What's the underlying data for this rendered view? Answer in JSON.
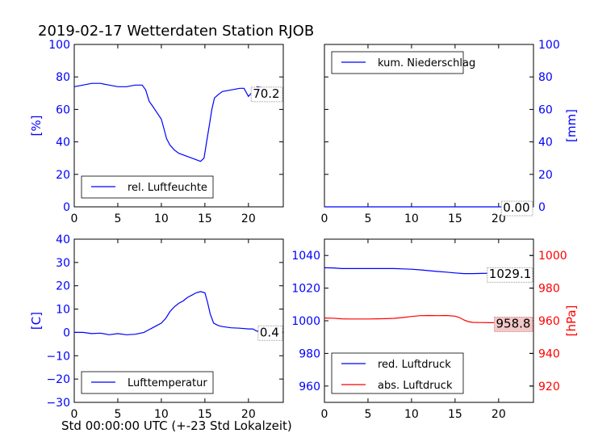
{
  "title": "2019-02-17 Wetterdaten Station RJOB",
  "footer_xlabel": "Std 00:00:00 UTC (+-23 Std Lokalzeit)",
  "colors": {
    "blue": "#0000ff",
    "red": "#ff0000",
    "black": "#000000"
  },
  "chart_data": [
    {
      "type": "line",
      "panel": "top-left",
      "ylabel": "[%]",
      "xlim": [
        0,
        24
      ],
      "ylim": [
        0,
        100
      ],
      "xticks": [
        "0",
        "5",
        "10",
        "15",
        "20"
      ],
      "yticks": [
        "0",
        "20",
        "40",
        "60",
        "80",
        "100"
      ],
      "legend": "lower-left",
      "last_value_label": "70.2",
      "series": [
        {
          "name": "rel. Luftfeuchte",
          "color": "#0000ff",
          "x": [
            0,
            1,
            2,
            3,
            4,
            5,
            6,
            7,
            7.8,
            8.2,
            8.6,
            9,
            9.5,
            10,
            10.3,
            10.6,
            11,
            11.5,
            12,
            12.5,
            13,
            13.5,
            14,
            14.5,
            14.9,
            15.2,
            15.5,
            15.8,
            16.1,
            16.5,
            17,
            18,
            19,
            19.5,
            20,
            20.5,
            21,
            22,
            23,
            24
          ],
          "y": [
            74,
            75,
            76,
            76,
            75,
            74,
            74,
            75,
            75,
            72,
            65,
            62,
            58,
            54,
            48,
            42,
            38,
            35,
            33,
            32,
            31,
            30,
            29,
            28,
            30,
            40,
            50,
            60,
            67,
            69,
            71,
            72,
            73,
            73,
            68,
            71,
            74,
            73,
            71,
            70.2
          ]
        }
      ]
    },
    {
      "type": "line",
      "panel": "top-right",
      "ylabel": "[mm]",
      "xlim": [
        0,
        24
      ],
      "ylim": [
        0,
        100
      ],
      "xticks": [
        "0",
        "5",
        "10",
        "15",
        "20"
      ],
      "yticks": [
        "0",
        "20",
        "40",
        "60",
        "80",
        "100"
      ],
      "legend": "upper-left",
      "last_value_label": "0.00",
      "series": [
        {
          "name": "kum. Niederschlag",
          "color": "#0000ff",
          "x": [
            0,
            24
          ],
          "y": [
            0,
            0
          ]
        }
      ]
    },
    {
      "type": "line",
      "panel": "bottom-left",
      "ylabel": "[C]",
      "xlim": [
        0,
        24
      ],
      "ylim": [
        -30,
        40
      ],
      "xticks": [
        "0",
        "5",
        "10",
        "15",
        "20"
      ],
      "yticks": [
        "−30",
        "−20",
        "−10",
        "0",
        "10",
        "20",
        "30",
        "40"
      ],
      "legend": "lower-left",
      "last_value_label": "0.4",
      "series": [
        {
          "name": "Lufttemperatur",
          "color": "#0000ff",
          "x": [
            0,
            1,
            2,
            3,
            4,
            5,
            6,
            7,
            8,
            8.5,
            9,
            9.5,
            10,
            10.5,
            11,
            11.5,
            12,
            12.5,
            13,
            13.5,
            14,
            14.5,
            15,
            15.3,
            15.6,
            16,
            16.5,
            17,
            18,
            19,
            20,
            20.5,
            21,
            21.5,
            22,
            23,
            24
          ],
          "y": [
            0,
            0,
            -0.5,
            -0.3,
            -1,
            -0.5,
            -1,
            -0.8,
            0,
            1,
            2,
            3,
            4,
            6,
            9,
            11,
            12.5,
            13.5,
            15,
            16,
            17,
            17.5,
            17,
            13,
            8,
            4,
            3,
            2.5,
            2,
            1.8,
            1.5,
            1.5,
            0.5,
            0.8,
            1,
            0.6,
            0.4
          ]
        }
      ]
    },
    {
      "type": "line",
      "panel": "bottom-right",
      "ylabel": "[hPa]",
      "xlim": [
        0,
        24
      ],
      "ylim_left": [
        950,
        1050
      ],
      "ylim_right": [
        910,
        1010
      ],
      "xticks": [
        "0",
        "5",
        "10",
        "15",
        "20"
      ],
      "yticks_left": [
        "960",
        "980",
        "1000",
        "1020",
        "1040"
      ],
      "yticks_right": [
        "920",
        "940",
        "960",
        "980",
        "1000"
      ],
      "legend": "lower-left",
      "series": [
        {
          "name": "red. Luftdruck",
          "color": "#0000ff",
          "axis": "left",
          "last_value_label": "1029.1",
          "x": [
            0,
            1,
            2,
            3,
            4,
            5,
            6,
            7,
            8,
            9,
            10,
            11,
            12,
            13,
            14,
            15,
            16,
            17,
            18,
            19,
            20,
            21,
            22,
            23,
            24
          ],
          "y": [
            1032.5,
            1032.4,
            1032,
            1032,
            1032,
            1032,
            1032,
            1032,
            1032,
            1031.8,
            1031.6,
            1031.2,
            1030.7,
            1030.2,
            1029.8,
            1029.3,
            1028.9,
            1028.9,
            1029,
            1029.1,
            1029.1,
            1029.1,
            1029.1,
            1029.1,
            1029.1
          ]
        },
        {
          "name": "abs. Luftdruck",
          "color": "#ff0000",
          "axis": "right",
          "last_value_label": "958.8",
          "x": [
            0,
            1,
            2,
            3,
            4,
            5,
            6,
            7,
            8,
            9,
            10,
            11,
            12,
            13,
            14,
            15,
            15.5,
            16,
            16.5,
            17,
            18,
            19,
            20,
            21,
            22,
            23,
            24
          ],
          "y": [
            961.7,
            961.6,
            961.2,
            961.1,
            961.1,
            961.1,
            961.2,
            961.3,
            961.5,
            962,
            962.6,
            963.1,
            963.2,
            963.1,
            963.2,
            962.8,
            962,
            960.5,
            959.5,
            959,
            958.9,
            958.8,
            958.8,
            958.8,
            958.8,
            958.8,
            958.8
          ]
        }
      ]
    }
  ]
}
